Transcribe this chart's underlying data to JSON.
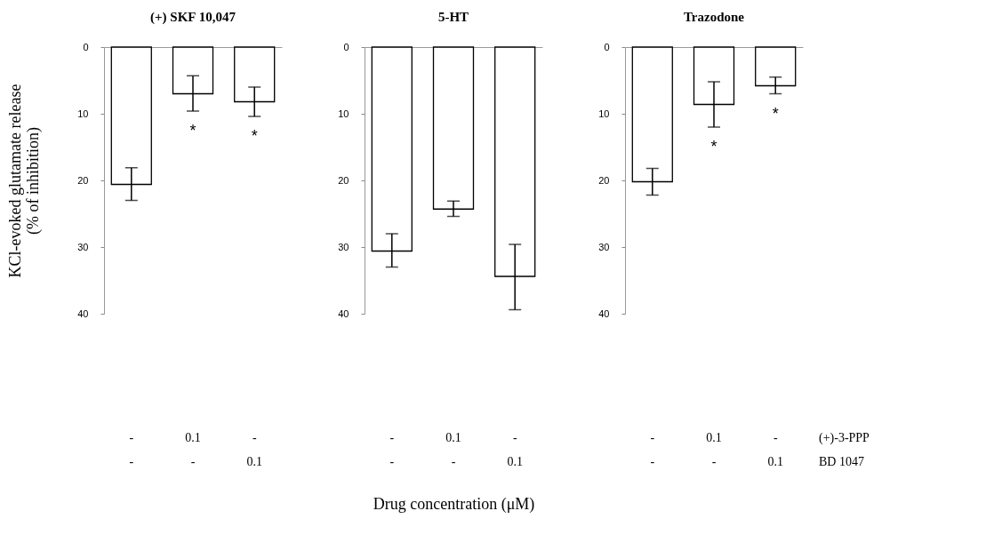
{
  "chart_data": [
    {
      "type": "bar",
      "title": "(+) SKF 10,047",
      "ylabel": "KCl-evoked glutamate release\n(% of inhibition)",
      "categories": [
        null,
        null,
        null
      ],
      "values": [
        20.6,
        7.0,
        8.2
      ],
      "errors": [
        [
          18.1,
          23.0
        ],
        [
          4.3,
          9.6
        ],
        [
          6.0,
          10.4
        ]
      ],
      "value_labels": [
        null,
        "*",
        "*"
      ],
      "color": "#ffffff",
      "ylim": [
        40,
        0
      ],
      "yticks": [
        0,
        10,
        20,
        30,
        40
      ],
      "tick_labels": "y",
      "annotations": [
        "-",
        "0.1",
        "-",
        "-",
        "-",
        "0.1"
      ]
    },
    {
      "type": "bar",
      "title": "5-HT",
      "xlabel": "Drug concentration (μM)",
      "categories": [
        null,
        null,
        null
      ],
      "values": [
        30.6,
        24.3,
        34.4
      ],
      "errors": [
        [
          28.0,
          33.0
        ],
        [
          23.1,
          25.4
        ],
        [
          29.6,
          39.4
        ]
      ],
      "color": "#ffffff",
      "ylim": [
        40,
        0
      ],
      "yticks": [
        0,
        10,
        20,
        30,
        40
      ],
      "tick_labels": "y",
      "annotations": [
        "-",
        "0.1",
        "-",
        "-",
        "-",
        "0.1"
      ]
    },
    {
      "type": "bar",
      "title": "Trazodone",
      "categories": [
        null,
        null,
        null
      ],
      "values": [
        20.2,
        8.6,
        5.8
      ],
      "errors": [
        [
          18.2,
          22.2
        ],
        [
          5.2,
          12.0
        ],
        [
          4.5,
          7.0
        ]
      ],
      "value_labels": [
        null,
        "*",
        "*"
      ],
      "color": "#ffffff",
      "ylim": [
        40,
        0
      ],
      "yticks": [
        0,
        10,
        20,
        30,
        40
      ],
      "tick_labels": "y",
      "annotations": [
        "-",
        "0.1",
        "-",
        "-",
        "-",
        "0.1",
        "(+)-3-PPP",
        "BD 1047"
      ]
    }
  ]
}
